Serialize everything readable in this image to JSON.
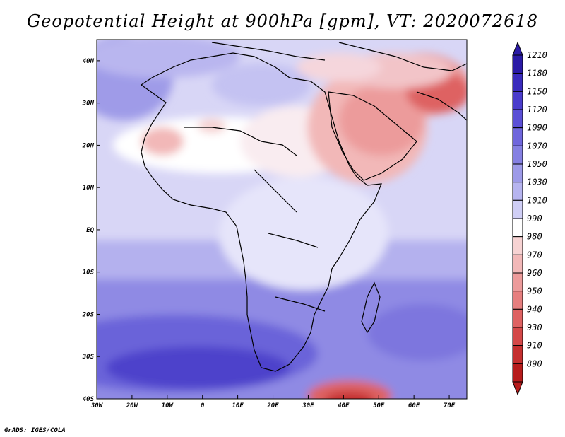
{
  "title": "Geopotential Height at 900hPa [gpm], VT: 2020072618",
  "credit": "GrADS: IGES/COLA",
  "map": {
    "lon_range": [
      -30,
      75
    ],
    "lat_range": [
      -40,
      45
    ],
    "lon_ticks": [
      "30W",
      "20W",
      "10W",
      "0",
      "10E",
      "20E",
      "30E",
      "40E",
      "50E",
      "60E",
      "70E"
    ],
    "lat_ticks": [
      "40N",
      "30N",
      "20N",
      "10N",
      "EQ",
      "10S",
      "20S",
      "30S",
      "40S"
    ]
  },
  "colorbar": {
    "levels": [
      "1210",
      "1180",
      "1150",
      "1120",
      "1090",
      "1070",
      "1050",
      "1030",
      "1010",
      "990",
      "980",
      "970",
      "960",
      "950",
      "940",
      "930",
      "910",
      "890"
    ],
    "colors": [
      "#2a1aa6",
      "#3a2bbd",
      "#4a3ccc",
      "#5b4fd6",
      "#6f66dc",
      "#8580e2",
      "#9d9ae8",
      "#b6b4ef",
      "#cfcef5",
      "#ffffff",
      "#f7d3d3",
      "#f2b8b8",
      "#ec9b9b",
      "#e67f7f",
      "#de6262",
      "#d44848",
      "#c52f2f",
      "#b71c1c"
    ]
  }
}
